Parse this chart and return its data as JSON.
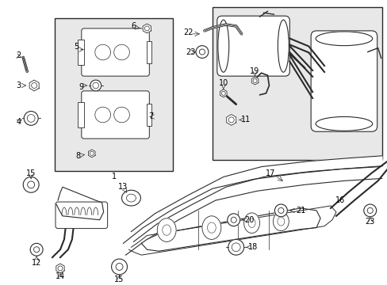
{
  "bg_color": "#ffffff",
  "fig_width": 4.89,
  "fig_height": 3.6,
  "dpi": 100,
  "gray": "#2a2a2a",
  "lt_gray": "#d0d0d0",
  "box_fill": "#e8e8e8"
}
